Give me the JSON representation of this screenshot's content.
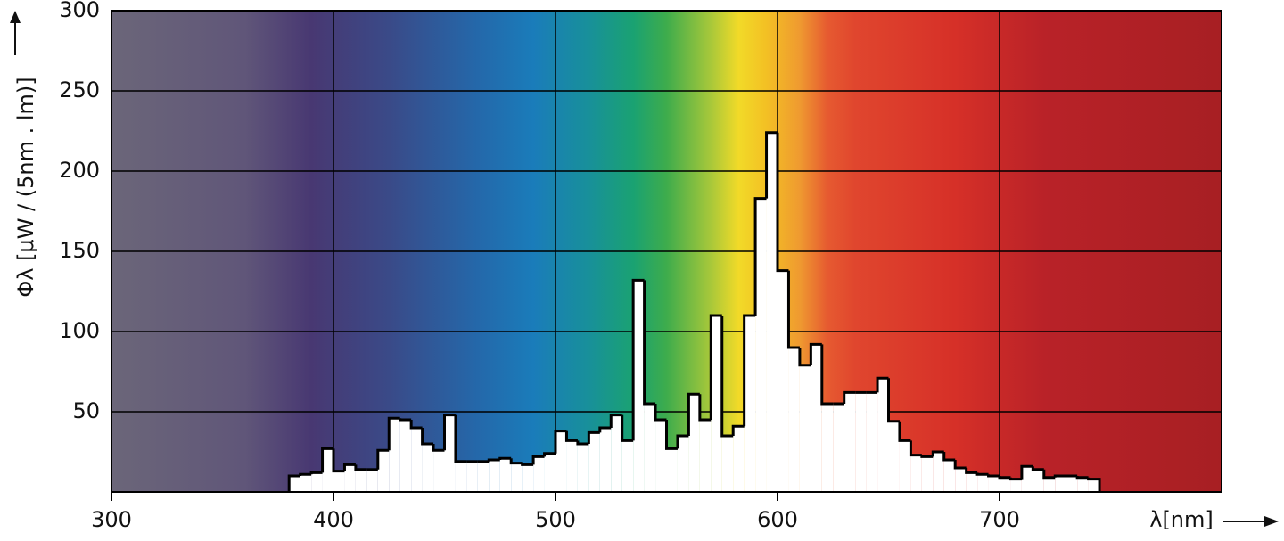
{
  "chart_data": {
    "type": "histogram",
    "y_label": "Φλ [μW / (5nm . lm)]",
    "x_label": "λ[nm]",
    "bins": [
      380,
      385,
      390,
      395,
      400,
      405,
      410,
      415,
      420,
      425,
      430,
      435,
      440,
      445,
      450,
      455,
      460,
      465,
      470,
      475,
      480,
      485,
      490,
      495,
      500,
      505,
      510,
      515,
      520,
      525,
      530,
      535,
      540,
      545,
      550,
      555,
      560,
      565,
      570,
      575,
      580,
      585,
      590,
      595,
      600,
      605,
      610,
      615,
      620,
      625,
      630,
      635,
      640,
      645,
      650,
      655,
      660,
      665,
      670,
      675,
      680,
      685,
      690,
      695,
      700,
      705,
      710,
      715,
      720,
      725,
      730,
      735,
      740,
      745
    ],
    "values": [
      10,
      11,
      12,
      27,
      13,
      17,
      14,
      14,
      26,
      46,
      45,
      40,
      30,
      26,
      48,
      19,
      19,
      19,
      20,
      21,
      18,
      17,
      22,
      24,
      38,
      32,
      30,
      37,
      40,
      48,
      32,
      132,
      55,
      45,
      27,
      35,
      61,
      45,
      110,
      35,
      41,
      110,
      183,
      224,
      138,
      90,
      79,
      92,
      55,
      55,
      62,
      62,
      62,
      71,
      44,
      32,
      23,
      22,
      25,
      20,
      15,
      12,
      11,
      10,
      9,
      8,
      16,
      14,
      9,
      10,
      10,
      9,
      8
    ],
    "color": "#ffffff",
    "xlim": [
      300,
      800
    ],
    "xticks": [
      300,
      400,
      500,
      600,
      700
    ],
    "ylim": [
      0,
      300
    ],
    "yticks": [
      50,
      100,
      150,
      200,
      250,
      300
    ],
    "grid": true
  }
}
